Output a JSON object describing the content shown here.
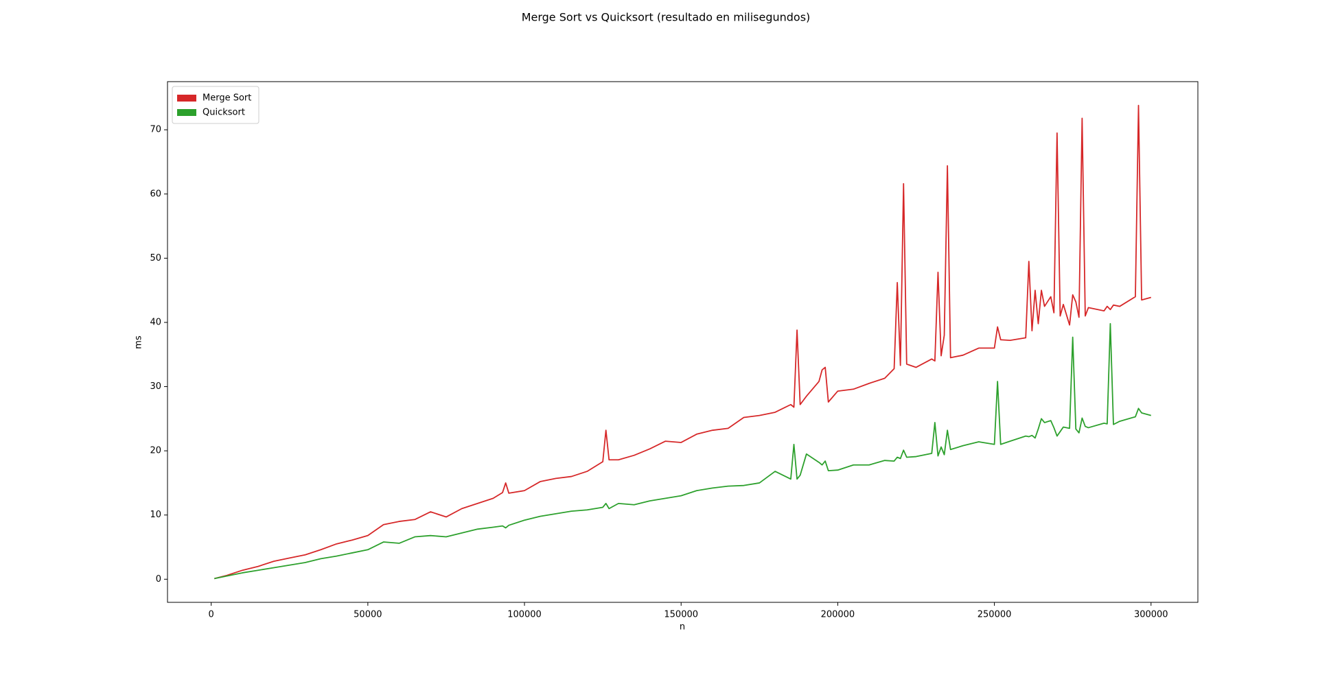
{
  "chart_data": {
    "type": "line",
    "title": "Merge Sort vs Quicksort (resultado en milisegundos)",
    "xlabel": "n",
    "ylabel": "ms",
    "legend": "upper left",
    "grid": false,
    "xlim": [
      -13950,
      314950
    ],
    "ylim": [
      -3.6,
      77.5
    ],
    "xticks": [
      0,
      50000,
      100000,
      150000,
      200000,
      250000,
      300000
    ],
    "yticks": [
      0,
      10,
      20,
      30,
      40,
      50,
      60,
      70
    ],
    "x": [
      1000,
      5000,
      10000,
      15000,
      20000,
      25000,
      30000,
      35000,
      40000,
      45000,
      50000,
      55000,
      60000,
      65000,
      70000,
      75000,
      80000,
      85000,
      90000,
      93000,
      94000,
      95000,
      100000,
      105000,
      110000,
      115000,
      120000,
      125000,
      126000,
      127000,
      130000,
      135000,
      140000,
      145000,
      150000,
      155000,
      160000,
      165000,
      170000,
      175000,
      180000,
      185000,
      186000,
      187000,
      188000,
      190000,
      194000,
      195000,
      196000,
      197000,
      200000,
      205000,
      210000,
      215000,
      218000,
      219000,
      220000,
      221000,
      222000,
      225000,
      230000,
      231000,
      232000,
      233000,
      234000,
      235000,
      236000,
      240000,
      245000,
      250000,
      251000,
      252000,
      255000,
      260000,
      261000,
      262000,
      263000,
      264000,
      265000,
      266000,
      268000,
      269000,
      270000,
      271000,
      272000,
      274000,
      275000,
      276000,
      277000,
      278000,
      279000,
      280000,
      285000,
      286000,
      287000,
      288000,
      290000,
      295000,
      296000,
      297000,
      300000
    ],
    "series": [
      {
        "name": "Merge Sort",
        "color": "#d62728",
        "values": [
          0.1,
          0.6,
          1.4,
          2.0,
          2.8,
          3.3,
          3.8,
          4.6,
          5.5,
          6.1,
          6.8,
          8.5,
          9.0,
          9.3,
          10.5,
          9.7,
          11.0,
          11.8,
          12.6,
          13.5,
          15.0,
          13.4,
          13.8,
          15.2,
          15.7,
          16.0,
          16.8,
          18.3,
          23.2,
          18.6,
          18.6,
          19.3,
          20.3,
          21.5,
          21.3,
          22.6,
          23.2,
          23.5,
          25.2,
          25.5,
          26.0,
          27.2,
          26.8,
          38.8,
          27.2,
          28.5,
          30.8,
          32.6,
          33.0,
          27.6,
          29.3,
          29.6,
          30.5,
          31.3,
          32.8,
          46.2,
          33.3,
          61.6,
          33.5,
          33.0,
          34.3,
          34.0,
          47.8,
          34.8,
          38.0,
          64.4,
          34.5,
          34.9,
          36.0,
          36.0,
          39.3,
          37.3,
          37.2,
          37.6,
          49.5,
          38.7,
          45.0,
          39.8,
          45.0,
          42.5,
          44.0,
          41.5,
          69.5,
          41.0,
          42.8,
          39.6,
          44.3,
          43.2,
          40.8,
          71.8,
          41.0,
          42.3,
          41.8,
          42.5,
          42.0,
          42.7,
          42.5,
          44.0,
          73.8,
          43.5,
          43.9
        ]
      },
      {
        "name": "Quicksort",
        "color": "#2ca02c",
        "values": [
          0.1,
          0.5,
          1.0,
          1.4,
          1.8,
          2.2,
          2.6,
          3.2,
          3.6,
          4.1,
          4.6,
          5.8,
          5.6,
          6.6,
          6.8,
          6.6,
          7.2,
          7.8,
          8.1,
          8.3,
          8.0,
          8.4,
          9.2,
          9.8,
          10.2,
          10.6,
          10.8,
          11.2,
          11.8,
          11.0,
          11.8,
          11.6,
          12.2,
          12.6,
          13.0,
          13.8,
          14.2,
          14.5,
          14.6,
          15.0,
          16.8,
          15.6,
          21.0,
          15.6,
          16.2,
          19.5,
          18.2,
          17.8,
          18.4,
          16.9,
          17.0,
          17.8,
          17.8,
          18.5,
          18.4,
          19.0,
          18.8,
          20.1,
          19.0,
          19.1,
          19.6,
          24.4,
          19.2,
          20.6,
          19.4,
          23.2,
          20.2,
          20.8,
          21.4,
          21.0,
          30.8,
          21.0,
          21.5,
          22.3,
          22.2,
          22.4,
          22.0,
          23.4,
          25.0,
          24.4,
          24.7,
          23.6,
          22.3,
          23.0,
          23.7,
          23.5,
          37.7,
          23.4,
          22.8,
          25.1,
          23.8,
          23.6,
          24.3,
          24.2,
          39.8,
          24.1,
          24.6,
          25.3,
          26.6,
          25.9,
          25.5
        ]
      }
    ]
  }
}
